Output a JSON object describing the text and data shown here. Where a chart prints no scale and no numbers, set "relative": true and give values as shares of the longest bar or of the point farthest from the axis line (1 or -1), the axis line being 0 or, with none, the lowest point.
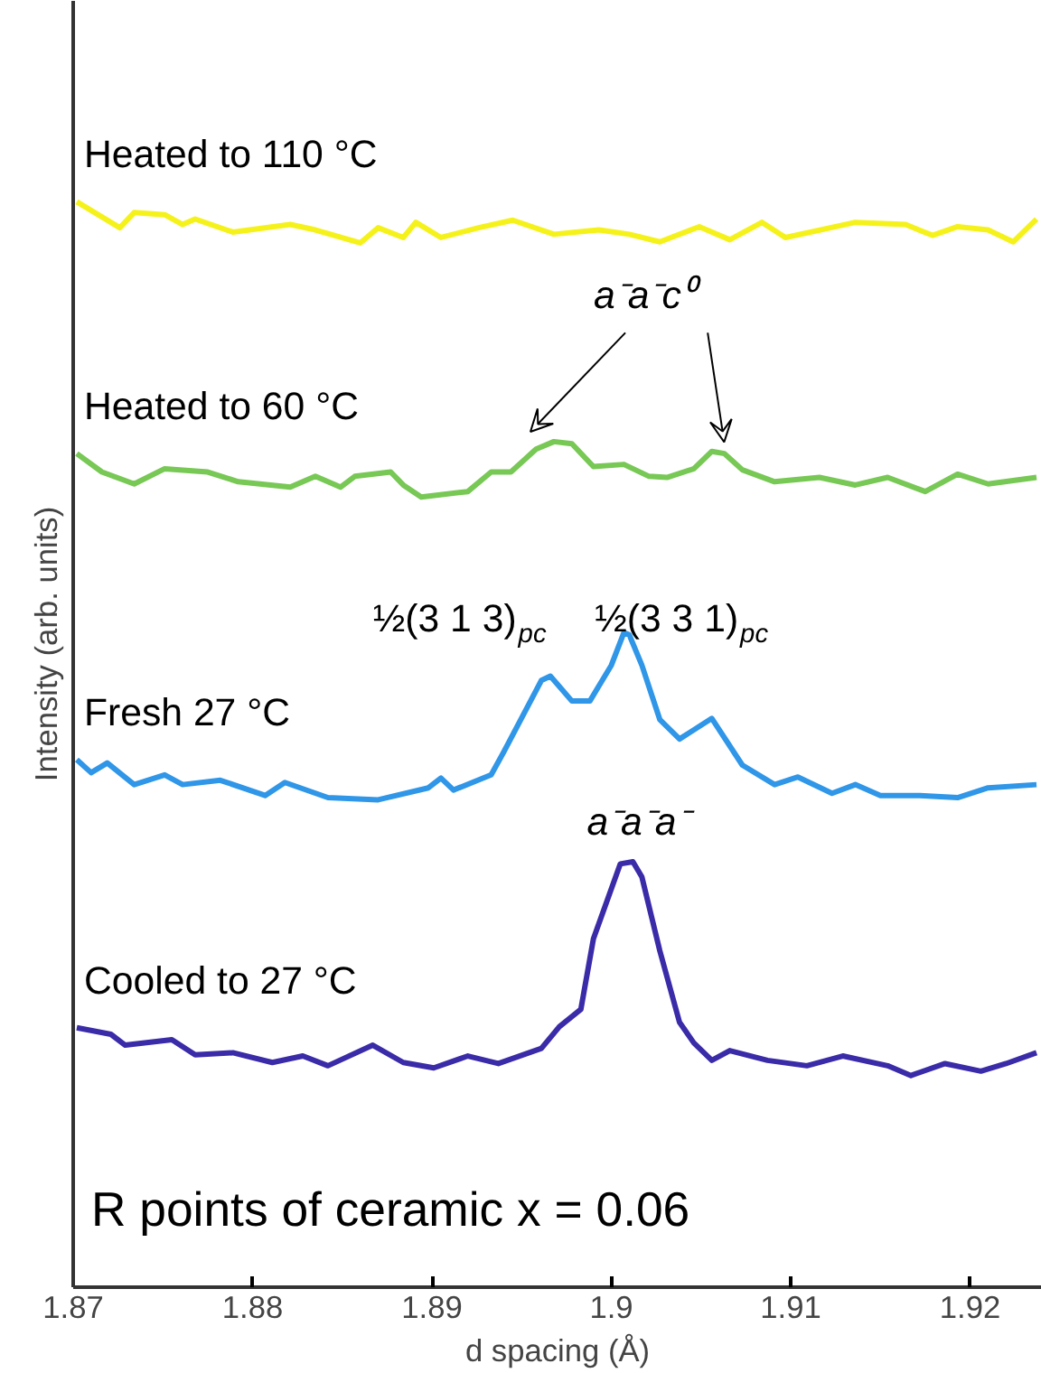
{
  "chart_data": {
    "type": "line",
    "relative": true,
    "xlabel": "d spacing (Å)",
    "ylabel": "Intensity (arb. units)",
    "xlim": [
      1.87,
      1.924
    ],
    "xticks": [
      1.87,
      1.88,
      1.89,
      {
        "value": 1.9,
        "label": "1.9"
      },
      1.91,
      1.92
    ],
    "grid": false,
    "marker": "none",
    "line_style": "solid",
    "series": [
      {
        "name": "Heated to 110 °C",
        "color": "#f5f21b",
        "x": [
          1.8702,
          1.8726,
          1.8734,
          1.8751,
          1.8761,
          1.8768,
          1.8789,
          1.8821,
          1.8835,
          1.886,
          1.887,
          1.8884,
          1.8891,
          1.8905,
          1.8926,
          1.8945,
          1.8968,
          1.8993,
          1.901,
          1.9027,
          1.9049,
          1.9066,
          1.9084,
          1.9097,
          1.9136,
          1.9164,
          1.9179,
          1.9193,
          1.921,
          1.9224,
          1.9237
        ],
        "values": [
          1.0,
          0.976,
          0.99,
          0.988,
          0.979,
          0.984,
          0.972,
          0.979,
          0.974,
          0.962,
          0.976,
          0.967,
          0.981,
          0.967,
          0.976,
          0.983,
          0.97,
          0.974,
          0.97,
          0.963,
          0.977,
          0.965,
          0.981,
          0.967,
          0.981,
          0.979,
          0.969,
          0.977,
          0.974,
          0.963,
          0.984
        ]
      },
      {
        "name": "Heated to 60 °C",
        "color": "#77c854",
        "x": [
          1.8702,
          1.8716,
          1.8734,
          1.8751,
          1.8775,
          1.8792,
          1.8821,
          1.8835,
          1.8849,
          1.8857,
          1.8877,
          1.8884,
          1.8894,
          1.892,
          1.8933,
          1.8944,
          1.8958,
          1.8968,
          1.8978,
          1.899,
          1.9007,
          1.9021,
          1.9031,
          1.9046,
          1.9056,
          1.9063,
          1.9073,
          1.9091,
          1.9116,
          1.9136,
          1.9154,
          1.9175,
          1.9193,
          1.921,
          1.9237
        ],
        "values": [
          0.768,
          0.751,
          0.74,
          0.754,
          0.751,
          0.742,
          0.737,
          0.747,
          0.737,
          0.747,
          0.751,
          0.739,
          0.728,
          0.733,
          0.751,
          0.751,
          0.772,
          0.779,
          0.777,
          0.756,
          0.758,
          0.747,
          0.746,
          0.754,
          0.77,
          0.768,
          0.753,
          0.742,
          0.746,
          0.739,
          0.746,
          0.733,
          0.749,
          0.74,
          0.746
        ]
      },
      {
        "name": "Fresh 27 °C",
        "color": "#2f96e8",
        "x": [
          1.8702,
          1.871,
          1.8719,
          1.8734,
          1.8751,
          1.8761,
          1.8782,
          1.8807,
          1.8818,
          1.8842,
          1.887,
          1.8898,
          1.8905,
          1.8912,
          1.8933,
          1.894,
          1.8961,
          1.8966,
          1.8978,
          1.8988,
          1.9,
          1.9007,
          1.901,
          1.9017,
          1.9027,
          1.9038,
          1.9056,
          1.9073,
          1.9091,
          1.9104,
          1.9123,
          1.9136,
          1.915,
          1.9172,
          1.9193,
          1.921,
          1.9237
        ],
        "values": [
          0.486,
          0.474,
          0.483,
          0.463,
          0.472,
          0.463,
          0.467,
          0.453,
          0.465,
          0.451,
          0.449,
          0.46,
          0.469,
          0.458,
          0.472,
          0.493,
          0.559,
          0.563,
          0.54,
          0.54,
          0.573,
          0.603,
          0.601,
          0.573,
          0.523,
          0.505,
          0.524,
          0.481,
          0.463,
          0.47,
          0.455,
          0.463,
          0.453,
          0.453,
          0.451,
          0.46,
          0.463
        ]
      },
      {
        "name": "Cooled to 27 °C",
        "color": "#3a2ba8",
        "x": [
          1.8702,
          1.8721,
          1.8729,
          1.8755,
          1.8768,
          1.8789,
          1.8811,
          1.8828,
          1.8842,
          1.8867,
          1.8884,
          1.8901,
          1.892,
          1.8937,
          1.8961,
          1.8971,
          1.8983,
          1.899,
          1.9005,
          1.9012,
          1.9017,
          1.9027,
          1.9038,
          1.9046,
          1.9056,
          1.9066,
          1.9087,
          1.9109,
          1.9129,
          1.9154,
          1.9167,
          1.9186,
          1.9206,
          1.922,
          1.9237
        ],
        "values": [
          0.239,
          0.233,
          0.223,
          0.228,
          0.214,
          0.216,
          0.207,
          0.213,
          0.204,
          0.223,
          0.207,
          0.202,
          0.213,
          0.206,
          0.22,
          0.24,
          0.256,
          0.321,
          0.39,
          0.392,
          0.378,
          0.31,
          0.244,
          0.225,
          0.209,
          0.218,
          0.209,
          0.204,
          0.213,
          0.204,
          0.195,
          0.206,
          0.199,
          0.206,
          0.216
        ]
      }
    ],
    "annotations": [
      "a⁻a⁻c⁰",
      "½(3 1 3)$_{pc}$",
      "½(3 3 1)$_{pc}$",
      "a⁻a⁻a⁻",
      "R points of ceramic x = 0.06"
    ]
  }
}
